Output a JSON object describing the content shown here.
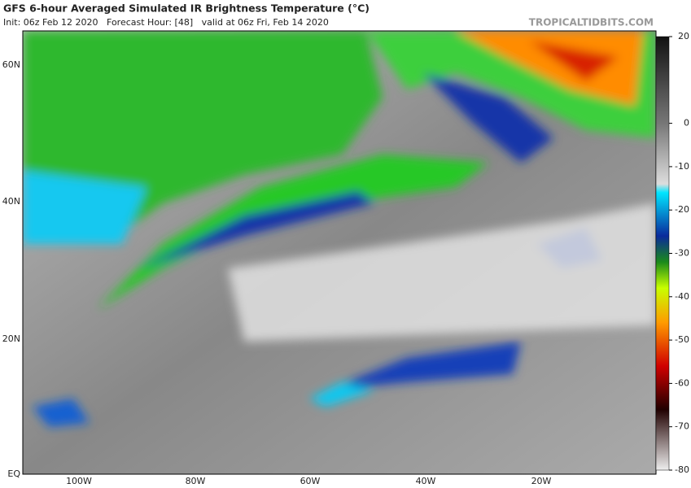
{
  "header": {
    "title": "GFS 6-hour Averaged Simulated IR Brightness Temperature (°C)",
    "init": "Init: 06z Feb 12 2020   Forecast Hour: [48]   valid at 06z Fri, Feb 14 2020",
    "watermark": "TROPICALTIDBITS.COM"
  },
  "map": {
    "lat_labels": [
      "60N",
      "40N",
      "20N",
      "EQ"
    ],
    "lon_labels": [
      "100W",
      "80W",
      "60W",
      "40W",
      "20W"
    ]
  },
  "colorbar": {
    "ticks": [
      20,
      0,
      -10,
      -20,
      -30,
      -40,
      -50,
      -60,
      -70,
      -80
    ]
  }
}
